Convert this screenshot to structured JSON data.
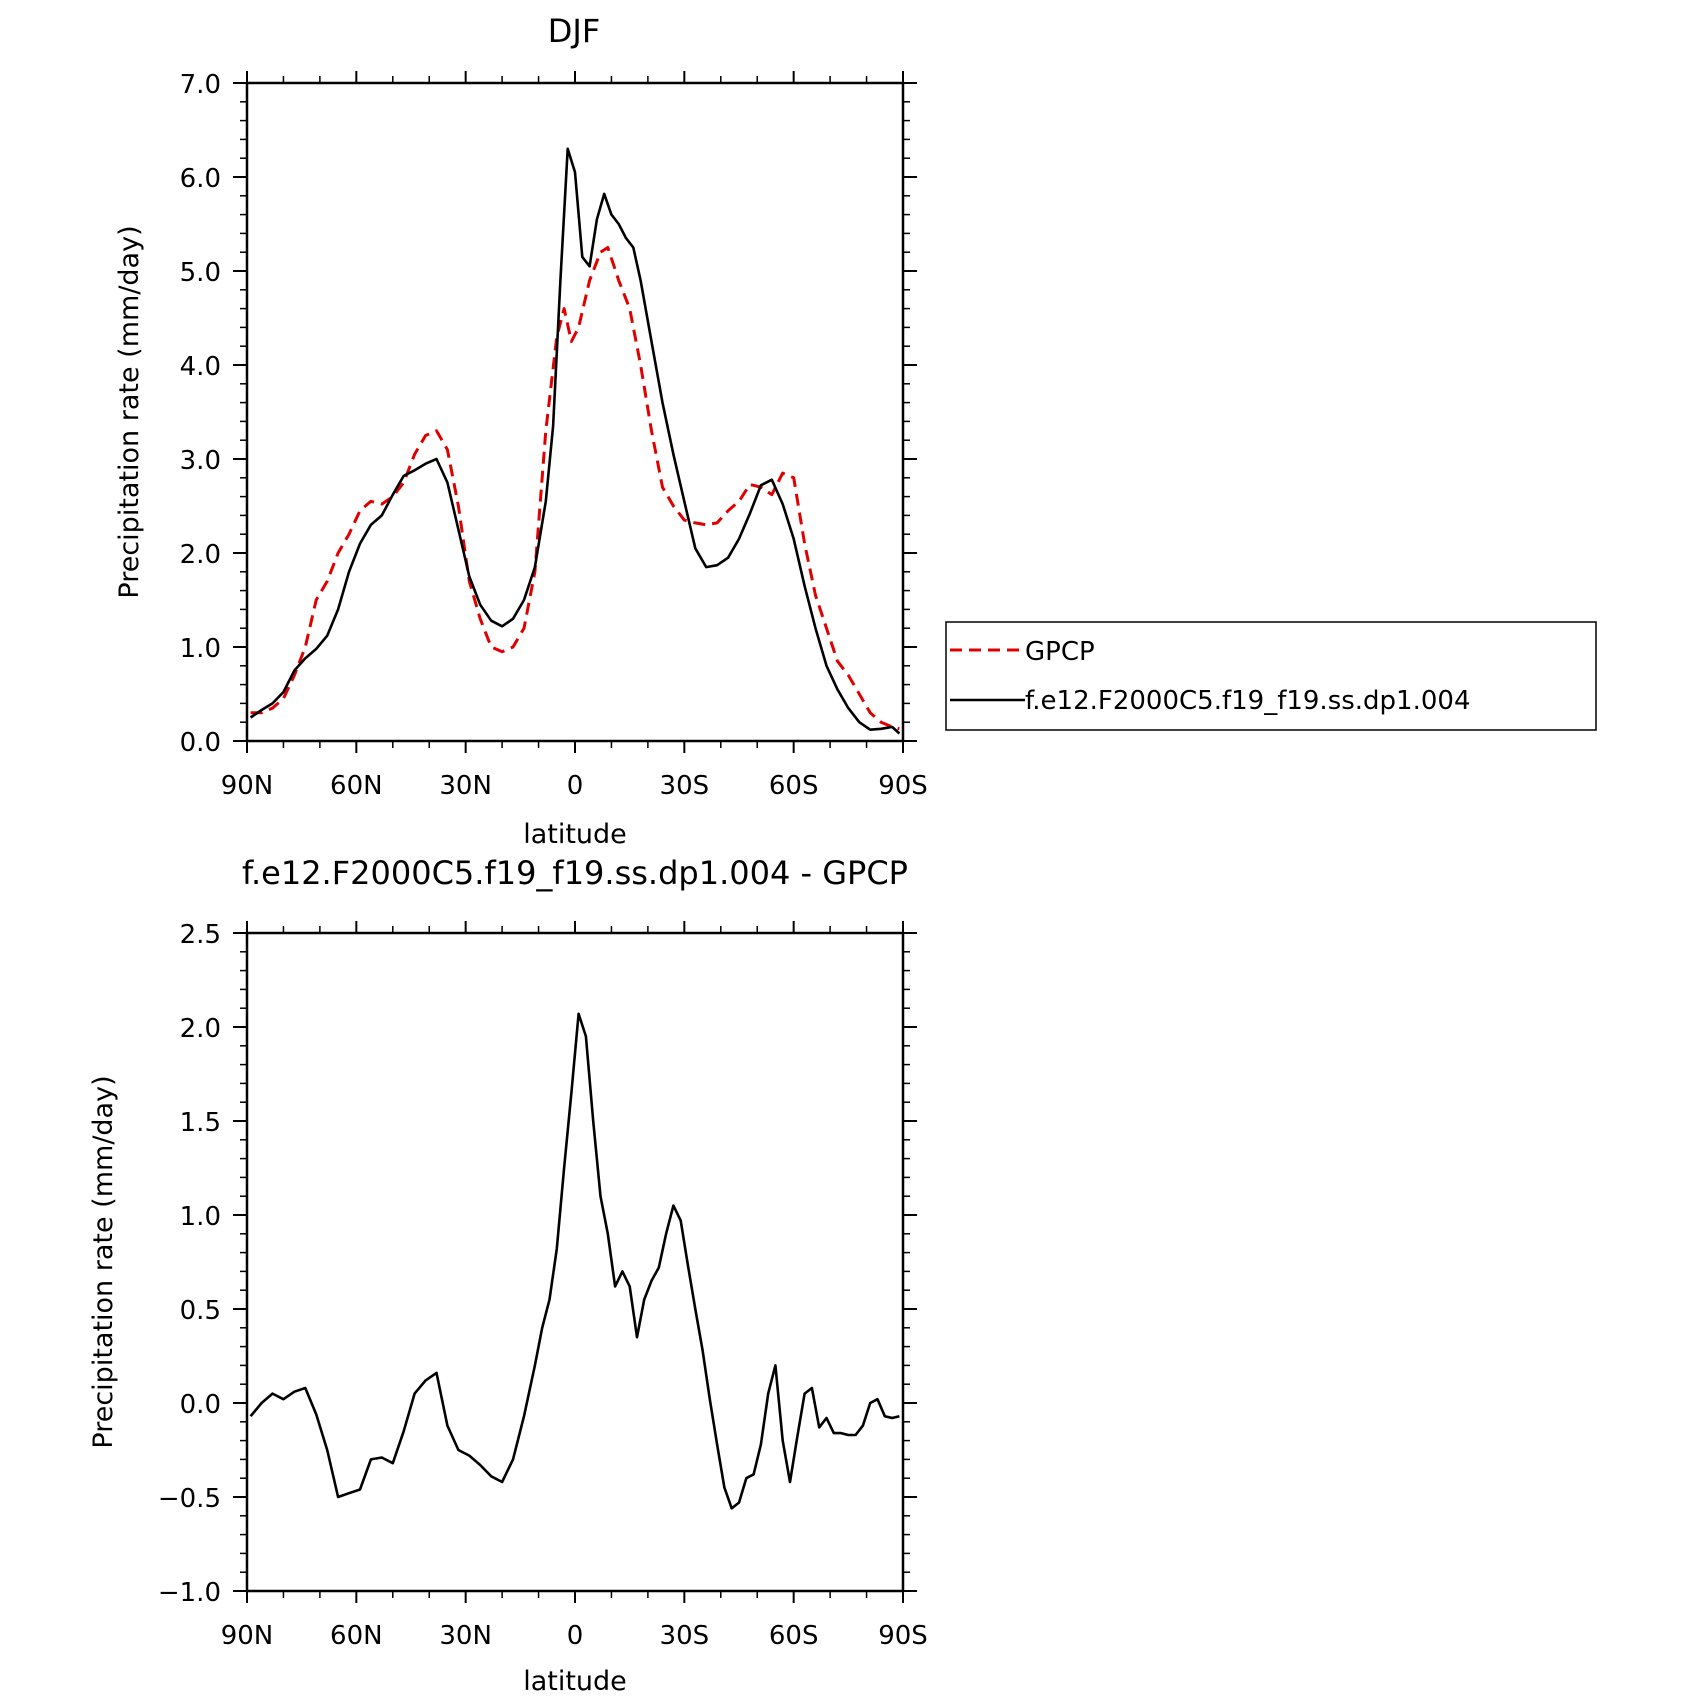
{
  "legend": {
    "entries": [
      {
        "label": "GPCP",
        "color": "#e00000",
        "dash": true
      },
      {
        "label": "f.e12.F2000C5.f19_f19.ss.dp1.004",
        "color": "#000000",
        "dash": false
      }
    ]
  },
  "chart_data": [
    {
      "type": "line",
      "title": "DJF",
      "xlabel": "latitude",
      "ylabel": "Precipitation rate (mm/day)",
      "xlim": [
        90,
        -90
      ],
      "ylim": [
        0,
        7
      ],
      "xticks": [
        90,
        60,
        30,
        0,
        -30,
        -60,
        -90
      ],
      "xtick_labels": [
        "90N",
        "60N",
        "30N",
        "0",
        "30S",
        "60S",
        "90S"
      ],
      "yticks": [
        0,
        1,
        2,
        3,
        4,
        5,
        6,
        7
      ],
      "ytick_labels": [
        "0.0",
        "1.0",
        "2.0",
        "3.0",
        "4.0",
        "5.0",
        "6.0",
        "7.0"
      ],
      "legend": "outside-right",
      "grid": false,
      "series": [
        {
          "name": "GPCP",
          "color": "#e00000",
          "dash": true,
          "x": [
            89,
            86,
            83,
            80,
            77,
            74,
            71,
            68,
            65,
            62,
            59,
            56,
            53,
            50,
            47,
            44,
            41,
            38,
            35,
            32,
            29,
            26,
            23,
            20,
            17,
            14,
            11,
            8,
            5,
            3,
            1,
            -1,
            -4,
            -7,
            -9,
            -12,
            -15,
            -18,
            -21,
            -24,
            -27,
            -30,
            -33,
            -36,
            -39,
            -42,
            -45,
            -48,
            -51,
            -54,
            -57,
            -60,
            -63,
            -66,
            -69,
            -72,
            -75,
            -78,
            -81,
            -84,
            -87,
            -89
          ],
          "y": [
            0.3,
            0.3,
            0.35,
            0.45,
            0.7,
            1.0,
            1.5,
            1.7,
            2.0,
            2.2,
            2.45,
            2.55,
            2.52,
            2.6,
            2.75,
            3.05,
            3.25,
            3.3,
            3.1,
            2.5,
            1.7,
            1.3,
            1.0,
            0.95,
            1.0,
            1.2,
            1.8,
            3.3,
            4.3,
            4.6,
            4.25,
            4.4,
            4.9,
            5.2,
            5.25,
            4.9,
            4.6,
            4.0,
            3.3,
            2.7,
            2.5,
            2.35,
            2.32,
            2.3,
            2.32,
            2.45,
            2.55,
            2.73,
            2.7,
            2.62,
            2.85,
            2.8,
            2.1,
            1.55,
            1.2,
            0.85,
            0.7,
            0.5,
            0.3,
            0.2,
            0.15,
            0.13
          ]
        },
        {
          "name": "f.e12.F2000C5.f19_f19.ss.dp1.004",
          "color": "#000000",
          "dash": false,
          "x": [
            89,
            86,
            83,
            80,
            77,
            74,
            71,
            68,
            65,
            62,
            59,
            56,
            53,
            50,
            47,
            44,
            41,
            38,
            35,
            32,
            29,
            26,
            23,
            20,
            17,
            14,
            11,
            8,
            6,
            4,
            2,
            0,
            -2,
            -4,
            -6,
            -8,
            -10,
            -12,
            -14,
            -16,
            -18,
            -21,
            -24,
            -27,
            -30,
            -33,
            -36,
            -39,
            -42,
            -45,
            -48,
            -51,
            -54,
            -57,
            -60,
            -63,
            -66,
            -69,
            -72,
            -75,
            -78,
            -81,
            -84,
            -87,
            -89
          ],
          "y": [
            0.25,
            0.33,
            0.4,
            0.52,
            0.75,
            0.88,
            0.98,
            1.12,
            1.4,
            1.8,
            2.1,
            2.3,
            2.4,
            2.62,
            2.82,
            2.88,
            2.95,
            3.0,
            2.75,
            2.25,
            1.75,
            1.45,
            1.28,
            1.22,
            1.3,
            1.5,
            1.85,
            2.55,
            3.35,
            4.9,
            6.3,
            6.05,
            5.15,
            5.05,
            5.55,
            5.82,
            5.6,
            5.5,
            5.35,
            5.25,
            4.9,
            4.25,
            3.6,
            3.05,
            2.55,
            2.05,
            1.85,
            1.87,
            1.95,
            2.15,
            2.42,
            2.72,
            2.78,
            2.52,
            2.15,
            1.65,
            1.2,
            0.8,
            0.55,
            0.35,
            0.2,
            0.12,
            0.13,
            0.15,
            0.08
          ]
        }
      ]
    },
    {
      "type": "line",
      "title": "f.e12.F2000C5.f19_f19.ss.dp1.004 - GPCP",
      "xlabel": "latitude",
      "ylabel": "Precipitation rate (mm/day)",
      "xlim": [
        90,
        -90
      ],
      "ylim": [
        -1,
        2.5
      ],
      "xticks": [
        90,
        60,
        30,
        0,
        -30,
        -60,
        -90
      ],
      "xtick_labels": [
        "90N",
        "60N",
        "30N",
        "0",
        "30S",
        "60S",
        "90S"
      ],
      "yticks": [
        -1,
        -0.5,
        0,
        0.5,
        1,
        1.5,
        2,
        2.5
      ],
      "ytick_labels": [
        "−1.0",
        "−0.5",
        "0.0",
        "0.5",
        "1.0",
        "1.5",
        "2.0",
        "2.5"
      ],
      "grid": false,
      "series": [
        {
          "color": "#000000",
          "dash": false,
          "x": [
            89,
            86,
            83,
            80,
            77,
            74,
            71,
            68,
            65,
            62,
            59,
            56,
            53,
            50,
            47,
            44,
            41,
            38,
            35,
            32,
            29,
            26,
            23,
            20,
            17,
            14,
            11,
            9,
            7,
            5,
            3,
            1,
            -1,
            -3,
            -5,
            -7,
            -9,
            -11,
            -13,
            -15,
            -17,
            -19,
            -21,
            -23,
            -25,
            -27,
            -29,
            -31,
            -33,
            -35,
            -37,
            -39,
            -41,
            -43,
            -45,
            -47,
            -49,
            -51,
            -53,
            -55,
            -57,
            -59,
            -61,
            -63,
            -65,
            -67,
            -69,
            -71,
            -73,
            -75,
            -77,
            -79,
            -81,
            -83,
            -85,
            -87,
            -89
          ],
          "y": [
            -0.07,
            0.0,
            0.05,
            0.02,
            0.06,
            0.08,
            -0.06,
            -0.25,
            -0.5,
            -0.48,
            -0.46,
            -0.3,
            -0.29,
            -0.32,
            -0.15,
            0.05,
            0.12,
            0.16,
            -0.12,
            -0.25,
            -0.28,
            -0.33,
            -0.39,
            -0.42,
            -0.3,
            -0.07,
            0.2,
            0.4,
            0.55,
            0.82,
            1.25,
            1.65,
            2.07,
            1.95,
            1.5,
            1.1,
            0.9,
            0.62,
            0.7,
            0.62,
            0.35,
            0.55,
            0.65,
            0.72,
            0.9,
            1.05,
            0.97,
            0.73,
            0.5,
            0.28,
            0.02,
            -0.22,
            -0.45,
            -0.56,
            -0.53,
            -0.4,
            -0.38,
            -0.22,
            0.05,
            0.2,
            -0.2,
            -0.42,
            -0.18,
            0.05,
            0.08,
            -0.13,
            -0.08,
            -0.16,
            -0.16,
            -0.17,
            -0.17,
            -0.12,
            0.0,
            0.02,
            -0.07,
            -0.08,
            -0.07
          ]
        }
      ]
    }
  ]
}
